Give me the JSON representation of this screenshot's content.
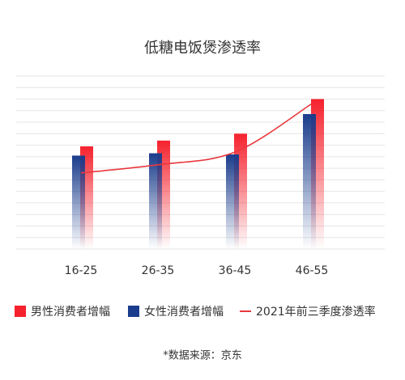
{
  "chart_data": {
    "type": "bar",
    "title": "低糖电饭煲渗透率",
    "categories": [
      "16-25",
      "26-35",
      "36-45",
      "46-55"
    ],
    "series": [
      {
        "name": "男性消费者增幅",
        "color": "#f5222d",
        "values": [
          8.9,
          9.4,
          10.0,
          13.0
        ]
      },
      {
        "name": "女性消费者增幅",
        "color": "#1a3c8c",
        "values": [
          8.1,
          8.3,
          8.2,
          11.7
        ]
      },
      {
        "name": "2021年前三季度渗透率",
        "color": "#e8383d",
        "type": "line",
        "values": [
          6.6,
          7.3,
          8.4,
          12.6
        ]
      }
    ],
    "ylim": [
      0,
      15
    ],
    "grid": true,
    "legend": "bottom",
    "source": "*数据来源：京东"
  }
}
